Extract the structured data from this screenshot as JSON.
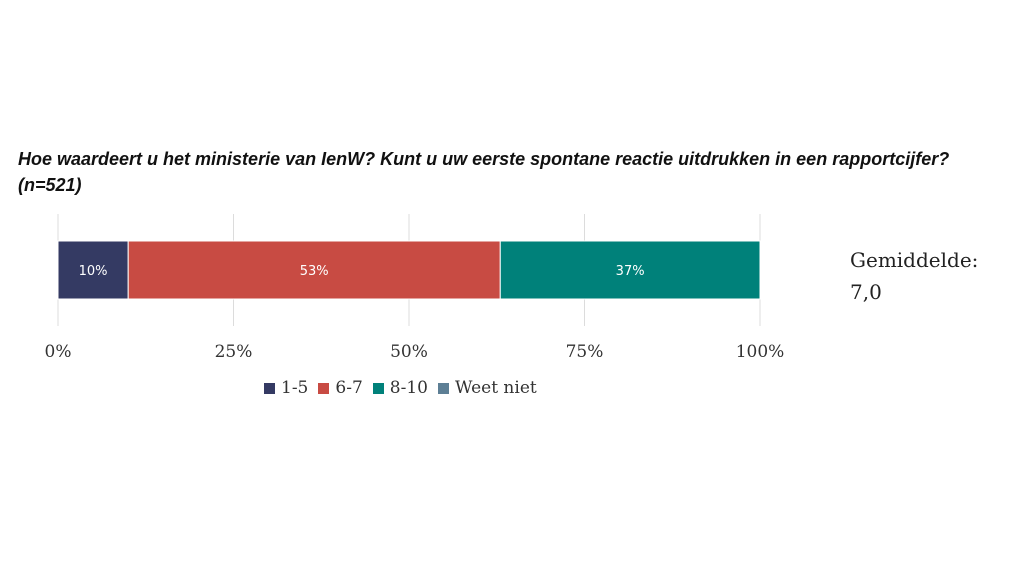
{
  "title": {
    "line1": "Hoe waardeert u het ministerie van IenW? Kunt u uw eerste spontane reactie uitdrukken in een rapportcijfer?",
    "line2": "(n=521)"
  },
  "average": {
    "label": "Gemiddelde:",
    "value": "7,0"
  },
  "chart_data": {
    "type": "bar",
    "orientation": "horizontal-stacked-100",
    "series": [
      {
        "name": "1-5",
        "value": 10,
        "label": "10%",
        "color": "#343a63"
      },
      {
        "name": "6-7",
        "value": 53,
        "label": "53%",
        "color": "#c84b43"
      },
      {
        "name": "8-10",
        "value": 37,
        "label": "37%",
        "color": "#00817a"
      },
      {
        "name": "Weet niet",
        "value": 0,
        "label": "",
        "color": "#5d7f95"
      }
    ],
    "xlim": [
      0,
      100
    ],
    "xticks": [
      "0%",
      "25%",
      "50%",
      "75%",
      "100%"
    ],
    "grid": true,
    "legend_position": "bottom"
  }
}
